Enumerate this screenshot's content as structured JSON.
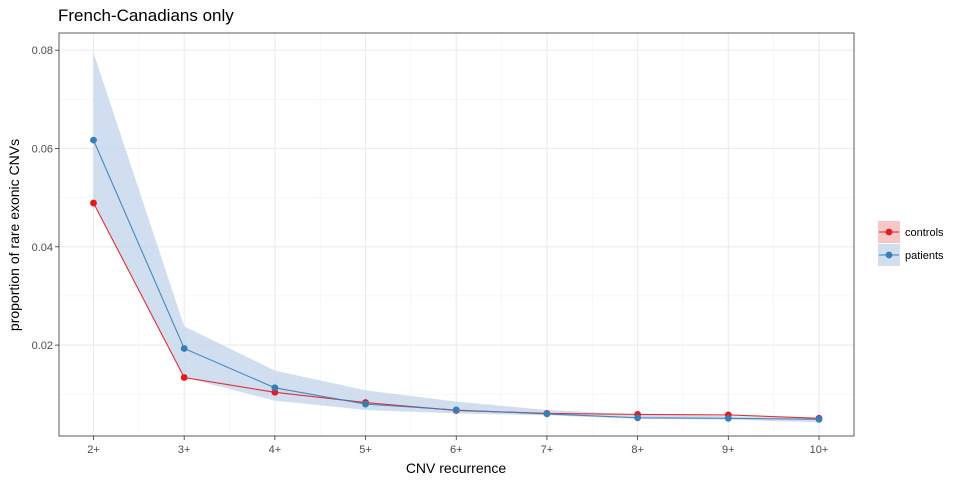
{
  "chart_data": {
    "type": "line",
    "title": "French-Canadians only",
    "xlabel": "CNV recurrence",
    "ylabel": "proportion of rare exonic CNVs",
    "categories": [
      "2+",
      "3+",
      "4+",
      "5+",
      "6+",
      "7+",
      "8+",
      "9+",
      "10+"
    ],
    "yticks": [
      0.02,
      0.04,
      0.06,
      0.08
    ],
    "ylim": [
      0.0015,
      0.0835
    ],
    "grid": true,
    "legend_position": "right",
    "series": [
      {
        "name": "controls",
        "color": "#e41a1c",
        "values": [
          0.0489,
          0.0134,
          0.0104,
          0.0083,
          0.0067,
          0.0061,
          0.0059,
          0.0058,
          0.0051
        ],
        "band_lower": [
          0.0489,
          0.0134,
          0.0104,
          0.0083,
          0.0067,
          0.0061,
          0.0059,
          0.0058,
          0.0051
        ],
        "band_upper": [
          0.0489,
          0.0134,
          0.0104,
          0.0083,
          0.0067,
          0.0061,
          0.0059,
          0.0058,
          0.0051
        ]
      },
      {
        "name": "patients",
        "color": "#377eb8",
        "band_color": "#c6d6eb",
        "values": [
          0.0617,
          0.0193,
          0.0113,
          0.008,
          0.0068,
          0.006,
          0.0052,
          0.0051,
          0.0049
        ],
        "band_lower": [
          0.0489,
          0.0134,
          0.0087,
          0.0068,
          0.0061,
          0.0057,
          0.005,
          0.0048,
          0.0043
        ],
        "band_upper": [
          0.0795,
          0.0238,
          0.0148,
          0.0108,
          0.0085,
          0.0068,
          0.0059,
          0.0055,
          0.0052
        ]
      }
    ]
  }
}
